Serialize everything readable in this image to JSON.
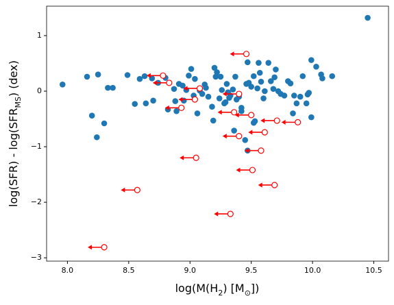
{
  "chart_data": {
    "type": "scatter",
    "xlabel": [
      {
        "text": "log(M(H"
      },
      {
        "sub": "2"
      },
      {
        "text": ") [M"
      },
      {
        "sub": "⊙"
      },
      {
        "text": "])"
      }
    ],
    "ylabel": [
      {
        "text": "log(SFR) - log(SFR"
      },
      {
        "sub": "MS"
      },
      {
        "text": ") (dex)"
      }
    ],
    "xlim": [
      7.83,
      10.62
    ],
    "ylim": [
      -3.06,
      1.53
    ],
    "xticks": [
      {
        "value": 8,
        "label": "8.0"
      },
      8.5,
      {
        "value": 9,
        "label": "9.0"
      },
      9.5,
      {
        "value": 10,
        "label": "10.0"
      },
      10.5
    ],
    "yticks": [
      {
        "value": -3,
        "label": "−3"
      },
      {
        "value": -2,
        "label": "−2"
      },
      {
        "value": -1,
        "label": "−1"
      },
      0,
      1
    ],
    "points": {
      "color": "#1f77b4",
      "x": [
        7.96,
        8.16,
        8.2,
        8.24,
        8.25,
        8.3,
        8.33,
        8.37,
        8.49,
        8.55,
        8.59,
        8.63,
        8.64,
        8.69,
        8.7,
        8.74,
        8.8,
        8.82,
        8.87,
        8.88,
        8.89,
        8.91,
        8.94,
        8.95,
        8.97,
        8.99,
        9.01,
        9.03,
        9.04,
        9.06,
        9.08,
        9.1,
        9.12,
        9.13,
        9.15,
        9.18,
        9.19,
        9.2,
        9.21,
        9.22,
        9.24,
        9.25,
        9.26,
        9.28,
        9.29,
        9.3,
        9.31,
        9.32,
        9.33,
        9.35,
        9.36,
        9.37,
        9.38,
        9.4,
        9.42,
        9.42,
        9.45,
        9.46,
        9.47,
        9.47,
        9.48,
        9.5,
        9.52,
        9.52,
        9.53,
        9.55,
        9.56,
        9.57,
        9.58,
        9.6,
        9.61,
        9.64,
        9.66,
        9.68,
        9.69,
        9.7,
        9.72,
        9.74,
        9.77,
        9.8,
        9.82,
        9.84,
        9.85,
        9.87,
        9.9,
        9.92,
        9.95,
        9.96,
        9.97,
        9.99,
        9.99,
        10.03,
        10.07,
        10.08,
        10.16,
        10.45
      ],
      "y": [
        0.12,
        0.26,
        -0.44,
        -0.83,
        0.3,
        -0.58,
        0.06,
        0.06,
        0.29,
        -0.23,
        0.22,
        0.27,
        -0.22,
        0.23,
        -0.17,
        0.15,
        0.24,
        -0.33,
        0.04,
        -0.18,
        -0.36,
        0.13,
        0.1,
        -0.17,
        0.02,
        0.28,
        0.4,
        -0.08,
        0.22,
        -0.4,
        0.01,
        -0.05,
        0.12,
        0.06,
        -0.1,
        -0.28,
        -0.53,
        0.42,
        0.26,
        0.34,
        -0.13,
        0.26,
        0.02,
        -0.22,
        -0.2,
        0.13,
        -0.02,
        -0.12,
        -0.08,
        0.03,
        -0.71,
        0.26,
        -0.15,
        -0.1,
        -0.3,
        -0.36,
        -0.88,
        0.13,
        0.52,
        -1.07,
        0.15,
        0.08,
        0.27,
        -0.57,
        -0.54,
        0.05,
        0.51,
        0.33,
        0.17,
        -0.13,
        0,
        0.51,
        0.18,
        0.04,
        0.25,
        0.39,
        0,
        -0.05,
        -0.08,
        0.18,
        0.14,
        -0.4,
        -0.08,
        -0.22,
        -0.1,
        0.27,
        -0.22,
        -0.06,
        -0.03,
        -0.47,
        0.56,
        0.44,
        0.3,
        0.23,
        0.27,
        1.32
      ]
    },
    "upper_limits": {
      "color": "#ff0000",
      "x": [
        8.78,
        8.83,
        8.93,
        9.08,
        9.04,
        9.46,
        9.4,
        9.36,
        9.5,
        9.71,
        9.88,
        9.61,
        9.4,
        9.58,
        9.05,
        9.51,
        9.69,
        8.57,
        9.33,
        8.3
      ],
      "y": [
        0.28,
        0.15,
        -0.3,
        0.05,
        -0.15,
        0.67,
        -0.05,
        -0.38,
        -0.43,
        -0.53,
        -0.56,
        -0.74,
        -0.81,
        -1.07,
        -1.2,
        -1.42,
        -1.69,
        -1.78,
        -2.21,
        -2.81
      ]
    }
  }
}
